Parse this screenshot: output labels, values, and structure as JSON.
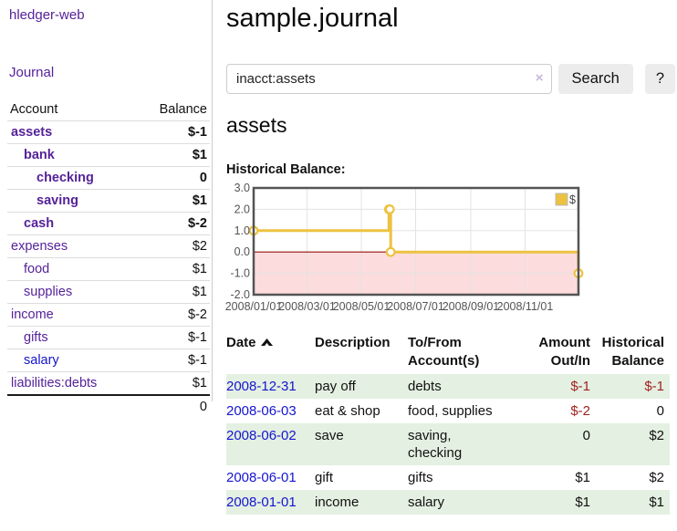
{
  "app": {
    "brand": "hledger-web"
  },
  "sidebar": {
    "nav_journal": "Journal",
    "accounts_table": {
      "col_account": "Account",
      "col_balance": "Balance",
      "rows": [
        {
          "label": "assets",
          "depth": 0,
          "bold": true,
          "link_color": "purple",
          "balance": "$-1",
          "balance_style": "negative"
        },
        {
          "label": "bank",
          "depth": 1,
          "bold": true,
          "link_color": "purple",
          "balance": "$1",
          "balance_style": "normal"
        },
        {
          "label": "checking",
          "depth": 2,
          "bold": true,
          "link_color": "purple",
          "balance": "0",
          "balance_style": "normal"
        },
        {
          "label": "saving",
          "depth": 2,
          "bold": true,
          "link_color": "purple",
          "balance": "$1",
          "balance_style": "normal"
        },
        {
          "label": "cash",
          "depth": 1,
          "bold": true,
          "link_color": "purple",
          "balance": "$-2",
          "balance_style": "negative"
        },
        {
          "label": "expenses",
          "depth": 0,
          "bold": false,
          "link_color": "purple",
          "balance": "$2",
          "balance_style": "normal"
        },
        {
          "label": "food",
          "depth": 1,
          "bold": false,
          "link_color": "purple",
          "balance": "$1",
          "balance_style": "normal"
        },
        {
          "label": "supplies",
          "depth": 1,
          "bold": false,
          "link_color": "purple",
          "balance": "$1",
          "balance_style": "normal"
        },
        {
          "label": "income",
          "depth": 0,
          "bold": false,
          "link_color": "purple",
          "balance": "$-2",
          "balance_style": "dimmed_negative"
        },
        {
          "label": "gifts",
          "depth": 1,
          "bold": false,
          "link_color": "purple",
          "balance": "$-1",
          "balance_style": "dimmed_negative"
        },
        {
          "label": "salary",
          "depth": 1,
          "bold": false,
          "link_color": "blue",
          "balance": "$-1",
          "balance_style": "dimmed_negative"
        },
        {
          "label": "liabilities:debts",
          "depth": 0,
          "bold": false,
          "link_color": "purple",
          "balance": "$1",
          "balance_style": "normal"
        }
      ],
      "total": "0"
    }
  },
  "header": {
    "title": "sample.journal"
  },
  "search": {
    "query": "inacct:assets",
    "clear_icon": "×",
    "button": "Search",
    "help": "?"
  },
  "account_page": {
    "heading": "assets",
    "chart_label": "Historical Balance:"
  },
  "chart_data": {
    "type": "line",
    "title": "Historical Balance:",
    "legend": "$",
    "legend_position": "top-right",
    "step": true,
    "x_range": [
      "2008-01-01",
      "2008-12-31"
    ],
    "x_ticks": [
      "2008/01/01",
      "2008/03/01",
      "2008/05/01",
      "2008/07/01",
      "2008/09/01",
      "2008/11/01"
    ],
    "y_ticks": [
      3.0,
      2.0,
      1.0,
      0.0,
      -1.0,
      -2.0
    ],
    "ylim": [
      -2,
      3
    ],
    "grid": true,
    "negative_region_shaded": true,
    "series": [
      {
        "name": "$",
        "points": [
          [
            "2008-01-01",
            1
          ],
          [
            "2008-06-01",
            2
          ],
          [
            "2008-06-02",
            2
          ],
          [
            "2008-06-03",
            0
          ],
          [
            "2008-12-31",
            -1
          ]
        ]
      }
    ]
  },
  "transactions": {
    "columns": [
      "Date",
      "Description",
      "To/From\nAccount(s)",
      "Amount\nOut/In",
      "Historical\nBalance"
    ],
    "sort": {
      "column": "Date",
      "direction": "asc"
    },
    "rows": [
      {
        "date": "2008-12-31",
        "description": "pay off",
        "accounts": "debts",
        "amount": "$-1",
        "amount_negative": true,
        "balance": "$-1",
        "balance_negative": true,
        "shaded": true
      },
      {
        "date": "2008-06-03",
        "description": "eat & shop",
        "accounts": "food, supplies",
        "amount": "$-2",
        "amount_negative": true,
        "balance": "0",
        "balance_negative": false,
        "shaded": false
      },
      {
        "date": "2008-06-02",
        "description": "save",
        "accounts": "saving,\nchecking",
        "amount": "0",
        "amount_negative": false,
        "balance": "$2",
        "balance_negative": false,
        "shaded": true
      },
      {
        "date": "2008-06-01",
        "description": "gift",
        "accounts": "gifts",
        "amount": "$1",
        "amount_negative": false,
        "balance": "$2",
        "balance_negative": false,
        "shaded": false
      },
      {
        "date": "2008-01-01",
        "description": "income",
        "accounts": "salary",
        "amount": "$1",
        "amount_negative": false,
        "balance": "$1",
        "balance_negative": false,
        "shaded": true
      }
    ]
  },
  "colors": {
    "link_purple": "#552299",
    "link_blue": "#1515d0",
    "negative": "#9e1a1a",
    "table_negative": "#a02222",
    "dimmed_negative": "#c68484",
    "row_green": "#e4f0e1",
    "chart_gold": "#edc240",
    "chart_pink": "#fcdcdc",
    "chart_zero_line": "#941111",
    "chart_border": "#545454",
    "chart_grid": "#e3e3e3",
    "chart_tick_text": "#545454"
  }
}
